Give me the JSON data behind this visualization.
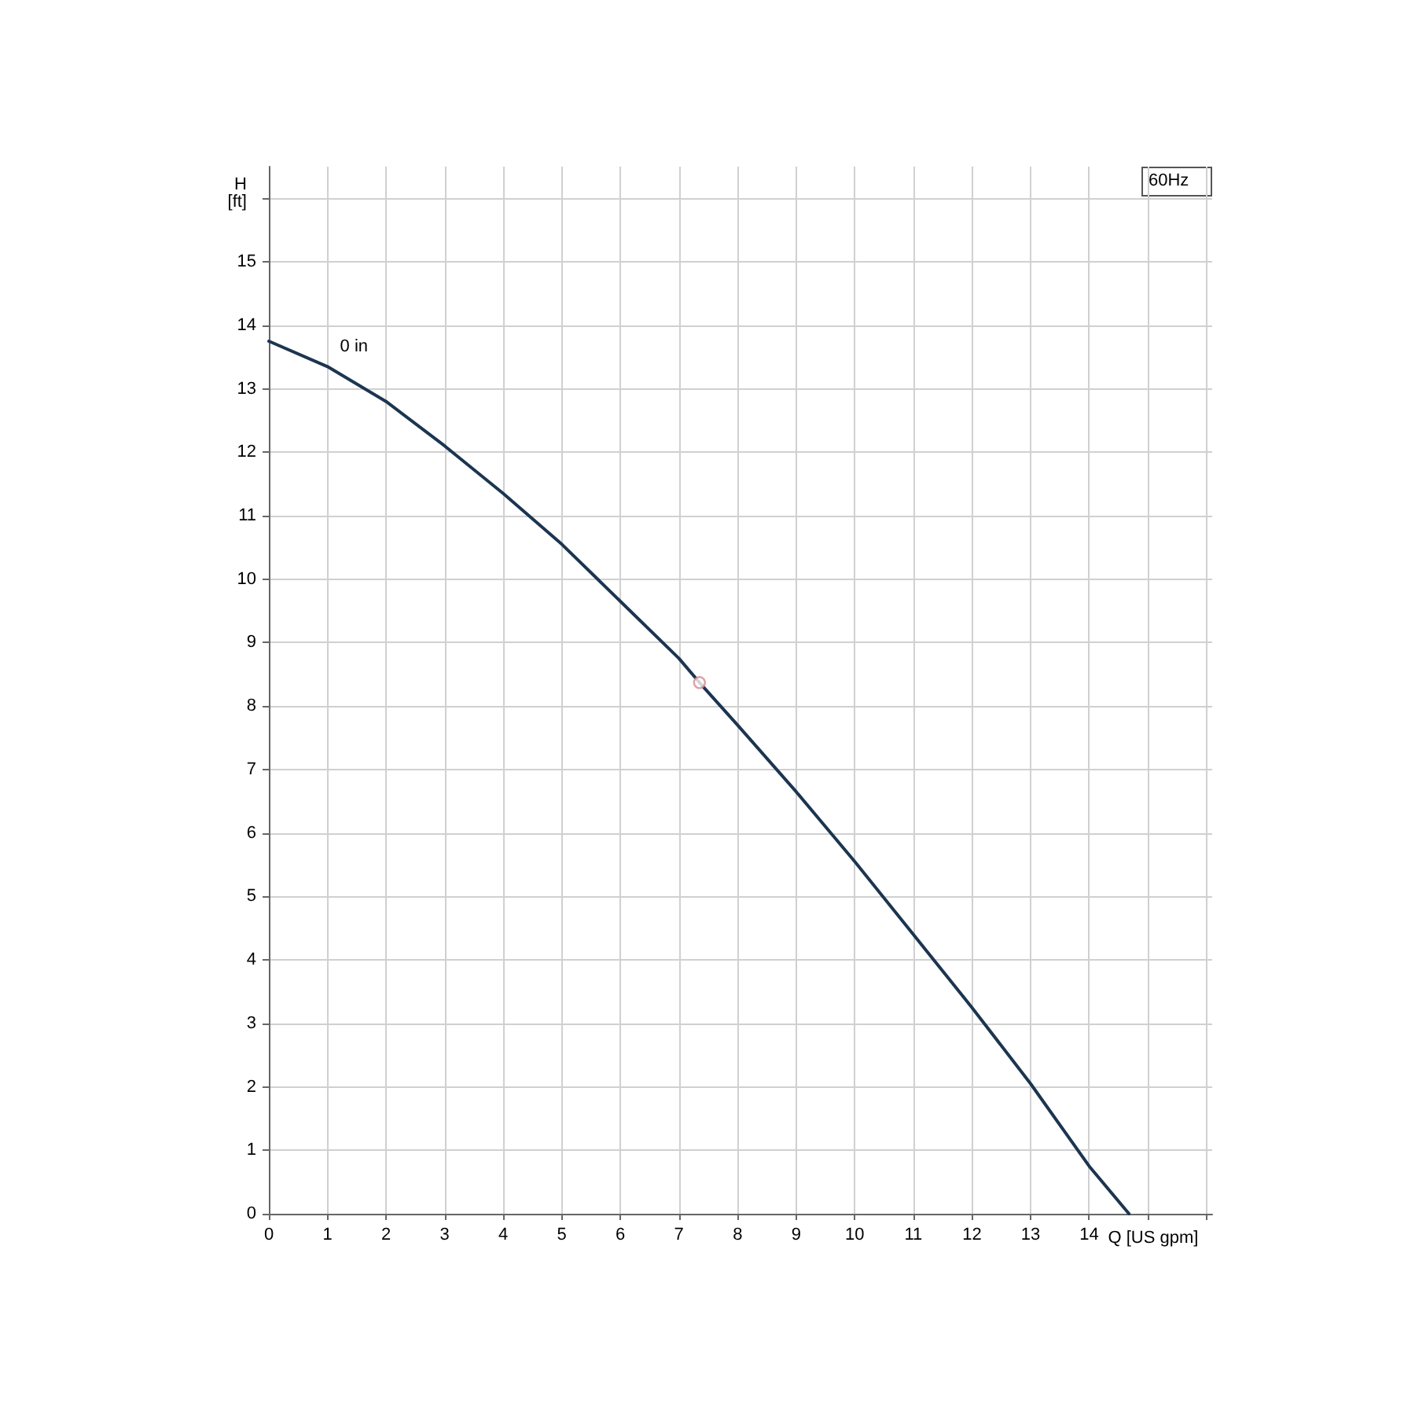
{
  "chart_data": {
    "type": "line",
    "title": "60Hz",
    "xlabel": "Q [US gpm]",
    "ylabel": "H [ft]",
    "xlim": [
      0,
      16.1
    ],
    "ylim": [
      0,
      16.5
    ],
    "xticks": [
      0,
      1,
      2,
      3,
      4,
      5,
      6,
      7,
      8,
      9,
      10,
      11,
      12,
      13,
      14,
      {
        "value": 15,
        "label": null
      },
      {
        "value": 16,
        "label": null
      }
    ],
    "yticks": [
      0,
      1,
      2,
      3,
      4,
      5,
      6,
      7,
      8,
      9,
      10,
      11,
      12,
      13,
      14,
      15,
      {
        "value": 16,
        "label": null
      }
    ],
    "grid": true,
    "marker": "none",
    "line_style": "solid",
    "series": [
      {
        "name": "0 in",
        "color": "#1c3550",
        "x": [
          0,
          1,
          2,
          3,
          4,
          5,
          6,
          7,
          7.35,
          8,
          9,
          10,
          11,
          12,
          13,
          14,
          14.68
        ],
        "values": [
          13.75,
          13.35,
          12.8,
          12.1,
          11.35,
          10.55,
          9.65,
          8.75,
          8.37,
          7.7,
          6.65,
          5.55,
          4.4,
          3.25,
          2.05,
          0.75,
          0
        ]
      },
      {
        "type": "scatter",
        "color": "#d88a8a",
        "marker": "circle",
        "x": [
          7.35
        ],
        "values": [
          8.37
        ]
      }
    ]
  }
}
